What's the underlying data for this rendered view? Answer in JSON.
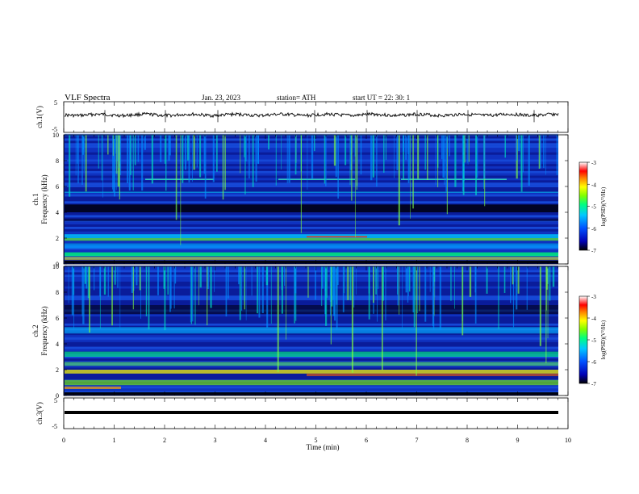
{
  "header": {
    "title": "VLF  Spectra",
    "date": "Jan. 23, 2023",
    "station": "station= ATH",
    "start": "start  UT  =    22: 30: 1"
  },
  "chart_data": [
    {
      "type": "line",
      "panel": "ch1-waveform",
      "ylabel": "ch.1(V)",
      "ylim": [
        -5,
        5
      ],
      "yticks": [
        "5",
        "-5"
      ],
      "xlim": [
        0,
        10
      ],
      "series": [
        {
          "values_desc": "noisy waveform around 0 V",
          "level": 0
        }
      ]
    },
    {
      "type": "heatmap",
      "panel": "ch1-spectrogram",
      "ylabel": "ch.1\nFrequency (kHz)",
      "ylim": [
        0,
        10
      ],
      "yticks": [
        "0",
        "2",
        "4",
        "6",
        "8",
        "10"
      ],
      "xlim": [
        0,
        10
      ],
      "colorbar": {
        "label": "log(PSD)(V²/Hz)",
        "ticks": [
          "-3",
          "-4",
          "-5",
          "-6",
          "-7"
        ],
        "range": [
          -7,
          -3
        ]
      }
    },
    {
      "type": "heatmap",
      "panel": "ch2-spectrogram",
      "ylabel": "ch.2\nFrequency (kHz)",
      "ylim": [
        0,
        10
      ],
      "yticks": [
        "0",
        "2",
        "4",
        "6",
        "8",
        "10"
      ],
      "xlim": [
        0,
        10
      ],
      "colorbar": {
        "label": "log(PSD)(V²/Hz)",
        "ticks": [
          "-3",
          "-4",
          "-5",
          "-6",
          "-7"
        ],
        "range": [
          -7,
          -3
        ]
      }
    },
    {
      "type": "line",
      "panel": "ch3-waveform",
      "ylabel": "ch.3(V)",
      "ylim": [
        -5,
        5
      ],
      "yticks": [
        "5",
        "0",
        "-5"
      ],
      "xlim": [
        0,
        10
      ],
      "series": [
        {
          "values_desc": "flat line",
          "level": 0
        }
      ]
    }
  ],
  "xaxis": {
    "label": "Time  (min)",
    "ticks": [
      "0",
      "1",
      "2",
      "3",
      "4",
      "5",
      "6",
      "7",
      "8",
      "9",
      "10"
    ]
  },
  "colors": {
    "cmap": [
      "#000000",
      "#0000b4",
      "#0050ff",
      "#00c8ff",
      "#00ff80",
      "#80ff00",
      "#ffff00",
      "#ff8000",
      "#ff0000",
      "#ffffff"
    ]
  }
}
